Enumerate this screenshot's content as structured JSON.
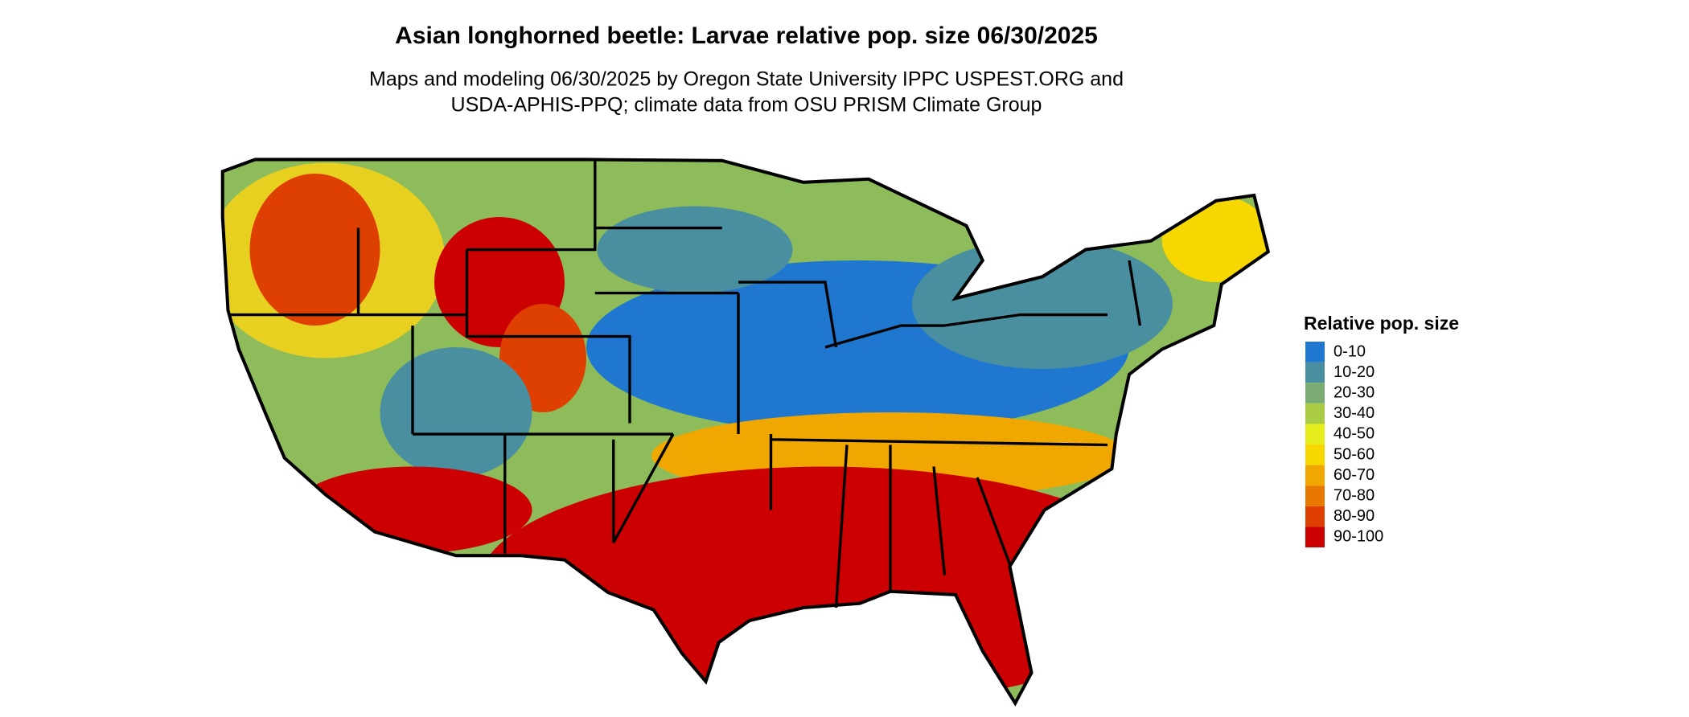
{
  "header": {
    "title": "Asian longhorned beetle: Larvae relative pop. size 06/30/2025",
    "subtitle": [
      "Maps and modeling 06/30/2025 by Oregon State University IPPC USPEST.ORG and",
      "USDA-APHIS-PPQ; climate data from OSU PRISM Climate Group"
    ]
  },
  "legend": {
    "title": "Relative pop. size",
    "items": [
      {
        "label": "0-10",
        "color": "#1f77d0"
      },
      {
        "label": "10-20",
        "color": "#4a8fa0"
      },
      {
        "label": "20-30",
        "color": "#7aab72"
      },
      {
        "label": "30-40",
        "color": "#aacc44"
      },
      {
        "label": "40-50",
        "color": "#e4ec1c"
      },
      {
        "label": "50-60",
        "color": "#f6d800"
      },
      {
        "label": "60-70",
        "color": "#f0a800"
      },
      {
        "label": "70-80",
        "color": "#e87800"
      },
      {
        "label": "80-90",
        "color": "#dd4000"
      },
      {
        "label": "90-100",
        "color": "#cc0000"
      }
    ]
  }
}
